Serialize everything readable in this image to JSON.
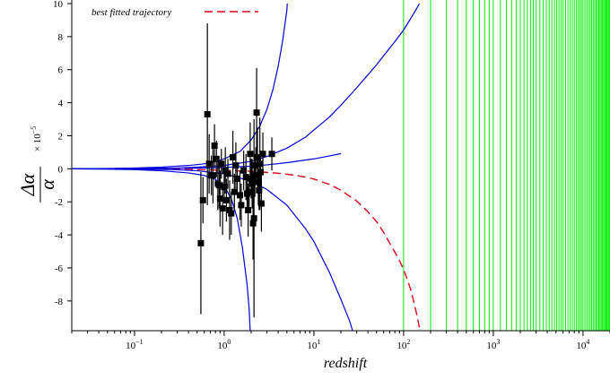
{
  "chart_data": {
    "type": "scatter",
    "title": "",
    "xlabel": "redshift",
    "ylabel": {
      "numerator": "Δα",
      "denominator": "α",
      "scale_prefix": "× 10",
      "scale_exponent": "−5"
    },
    "x_scale": "log",
    "xlim": [
      0.02,
      20000
    ],
    "ylim": [
      -9.8,
      10
    ],
    "x_ticks": [
      {
        "value": 0.1,
        "base": "10",
        "exp": "−1"
      },
      {
        "value": 1,
        "base": "10",
        "exp": "0"
      },
      {
        "value": 10,
        "base": "10",
        "exp": "1"
      },
      {
        "value": 100,
        "base": "10",
        "exp": "2"
      },
      {
        "value": 1000,
        "base": "10",
        "exp": "3"
      },
      {
        "value": 10000,
        "base": "10",
        "exp": "4"
      }
    ],
    "y_ticks": [
      {
        "value": -8,
        "label": "-8"
      },
      {
        "value": -6,
        "label": "-6"
      },
      {
        "value": -4,
        "label": "-4"
      },
      {
        "value": -2,
        "label": "-2"
      },
      {
        "value": 0,
        "label": "0"
      },
      {
        "value": 2,
        "label": "2"
      },
      {
        "value": 4,
        "label": "4"
      },
      {
        "value": 6,
        "label": "6"
      },
      {
        "value": 8,
        "label": "8"
      },
      {
        "value": 10,
        "label": "10"
      }
    ],
    "grid": false,
    "legend": {
      "placement": "top-left",
      "entries": [
        {
          "label": "best fitted trajectory",
          "color": "#e0001a",
          "style": "dashed"
        }
      ]
    },
    "vertical_line_color": "#00ee00",
    "vertical_lines_x": [
      100,
      200,
      300,
      400,
      500,
      600,
      700,
      800,
      900,
      1000,
      1200,
      1400,
      1600,
      1800,
      2000,
      2200,
      2400,
      2600,
      2800,
      3000,
      3300,
      3600,
      3900,
      4200,
      4500,
      4800,
      5100,
      5400,
      5700,
      6000,
      6400,
      6800,
      7200,
      7600,
      8000,
      8400,
      8800,
      9200,
      9600,
      10000,
      10500,
      11000,
      11500,
      12000,
      12500,
      13000,
      13500,
      14000,
      14500,
      15000,
      15500,
      16000,
      16500,
      17000,
      17500,
      18000,
      18500,
      19000,
      19500,
      20000
    ],
    "series": [
      {
        "name": "best fitted trajectory",
        "kind": "line",
        "color": "#e0001a",
        "style": "dashed",
        "points": [
          [
            0.02,
            0
          ],
          [
            0.05,
            0
          ],
          [
            0.1,
            -0.01
          ],
          [
            0.3,
            -0.03
          ],
          [
            0.6,
            -0.06
          ],
          [
            1,
            -0.09
          ],
          [
            2,
            -0.15
          ],
          [
            4,
            -0.27
          ],
          [
            6,
            -0.38
          ],
          [
            8,
            -0.5
          ],
          [
            10,
            -0.62
          ],
          [
            15,
            -0.95
          ],
          [
            20,
            -1.3
          ],
          [
            30,
            -1.95
          ],
          [
            40,
            -2.6
          ],
          [
            50,
            -3.2
          ],
          [
            60,
            -3.85
          ],
          [
            70,
            -4.5
          ],
          [
            80,
            -5.05
          ],
          [
            90,
            -5.55
          ],
          [
            100,
            -6.1
          ],
          [
            110,
            -6.7
          ],
          [
            120,
            -7.3
          ],
          [
            130,
            -8.05
          ],
          [
            140,
            -8.8
          ],
          [
            150,
            -9.6
          ]
        ]
      },
      {
        "kind": "line",
        "color": "#0000dd",
        "style": "solid",
        "points": [
          [
            0.02,
            0
          ],
          [
            0.05,
            0.02
          ],
          [
            0.1,
            0.05
          ],
          [
            0.2,
            0.1
          ],
          [
            0.4,
            0.2
          ],
          [
            0.6,
            0.3
          ],
          [
            0.8,
            0.45
          ],
          [
            1,
            0.6
          ],
          [
            1.5,
            1.05
          ],
          [
            2,
            1.75
          ],
          [
            2.5,
            2.6
          ],
          [
            3,
            3.6
          ],
          [
            3.5,
            4.8
          ],
          [
            4,
            6.2
          ],
          [
            4.5,
            7.8
          ],
          [
            5,
            9.6
          ],
          [
            5.05,
            10
          ]
        ]
      },
      {
        "kind": "line",
        "color": "#0000dd",
        "style": "solid",
        "points": [
          [
            0.02,
            0
          ],
          [
            0.05,
            -0.02
          ],
          [
            0.1,
            -0.05
          ],
          [
            0.2,
            -0.12
          ],
          [
            0.4,
            -0.25
          ],
          [
            0.6,
            -0.4
          ],
          [
            0.8,
            -0.65
          ],
          [
            1,
            -1.05
          ],
          [
            1.2,
            -1.8
          ],
          [
            1.4,
            -3.0
          ],
          [
            1.6,
            -4.8
          ],
          [
            1.8,
            -7.0
          ],
          [
            1.9,
            -8.5
          ],
          [
            1.95,
            -9.8
          ]
        ]
      },
      {
        "kind": "line",
        "color": "#0000dd",
        "style": "solid",
        "points": [
          [
            0.02,
            0
          ],
          [
            0.1,
            0.02
          ],
          [
            0.3,
            0.05
          ],
          [
            0.5,
            0.1
          ],
          [
            1,
            0.2
          ],
          [
            2,
            0.45
          ],
          [
            3,
            0.75
          ],
          [
            5,
            1.25
          ],
          [
            8,
            1.9
          ],
          [
            10,
            2.35
          ],
          [
            15,
            3.15
          ],
          [
            20,
            3.85
          ],
          [
            30,
            4.9
          ],
          [
            50,
            6.3
          ],
          [
            80,
            7.7
          ],
          [
            100,
            8.4
          ],
          [
            130,
            9.4
          ],
          [
            150,
            10
          ]
        ]
      },
      {
        "kind": "line",
        "color": "#0000dd",
        "style": "solid",
        "points": [
          [
            0.02,
            0
          ],
          [
            0.1,
            -0.02
          ],
          [
            0.3,
            -0.06
          ],
          [
            0.5,
            -0.12
          ],
          [
            1,
            -0.3
          ],
          [
            2,
            -0.75
          ],
          [
            3,
            -1.25
          ],
          [
            5,
            -2.2
          ],
          [
            8,
            -3.6
          ],
          [
            10,
            -4.4
          ],
          [
            15,
            -6.3
          ],
          [
            20,
            -7.9
          ],
          [
            25,
            -9.2
          ],
          [
            27,
            -9.8
          ]
        ]
      },
      {
        "kind": "line",
        "color": "#0000dd",
        "style": "solid",
        "points": [
          [
            0.02,
            0
          ],
          [
            0.1,
            0.01
          ],
          [
            0.5,
            0.04
          ],
          [
            1,
            0.08
          ],
          [
            2,
            0.16
          ],
          [
            3,
            0.24
          ],
          [
            5,
            0.37
          ],
          [
            10,
            0.6
          ],
          [
            15,
            0.78
          ],
          [
            20,
            0.92
          ]
        ]
      },
      {
        "name": "measurements",
        "kind": "errorbar",
        "color": "#000000",
        "points": [
          {
            "x": 0.55,
            "y": -4.5,
            "err": 4.3
          },
          {
            "x": 0.58,
            "y": -1.9,
            "err": 1.4
          },
          {
            "x": 0.65,
            "y": 3.3,
            "err": 5.5
          },
          {
            "x": 0.68,
            "y": 0.3,
            "err": 1.8
          },
          {
            "x": 0.72,
            "y": -0.4,
            "err": 1.2
          },
          {
            "x": 0.75,
            "y": -0.4,
            "err": 1.7
          },
          {
            "x": 0.78,
            "y": 1.4,
            "err": 1.3
          },
          {
            "x": 0.82,
            "y": 0.6,
            "err": 1.1
          },
          {
            "x": 0.85,
            "y": -0.9,
            "err": 1.6
          },
          {
            "x": 0.88,
            "y": -1.0,
            "err": 1.4
          },
          {
            "x": 0.9,
            "y": -1.8,
            "err": 1.7
          },
          {
            "x": 0.93,
            "y": 0.3,
            "err": 0.9
          },
          {
            "x": 0.96,
            "y": -2.4,
            "err": 1.6
          },
          {
            "x": 1.0,
            "y": -1.1,
            "err": 1.0
          },
          {
            "x": 1.03,
            "y": -0.1,
            "err": 1.4
          },
          {
            "x": 1.06,
            "y": -1.9,
            "err": 1.3
          },
          {
            "x": 1.1,
            "y": -0.3,
            "err": 0.9
          },
          {
            "x": 1.15,
            "y": -2.5,
            "err": 1.8
          },
          {
            "x": 1.2,
            "y": -2.7,
            "err": 1.3
          },
          {
            "x": 1.25,
            "y": 0.7,
            "err": 1.6
          },
          {
            "x": 1.3,
            "y": -1.4,
            "err": 1.1
          },
          {
            "x": 1.35,
            "y": 0.2,
            "err": 1.4
          },
          {
            "x": 1.4,
            "y": -0.6,
            "err": 0.8
          },
          {
            "x": 1.5,
            "y": -1.6,
            "err": 1.5
          },
          {
            "x": 1.55,
            "y": -2.2,
            "err": 1.3
          },
          {
            "x": 1.65,
            "y": -0.1,
            "err": 1.2
          },
          {
            "x": 1.75,
            "y": -0.5,
            "err": 1.4
          },
          {
            "x": 1.8,
            "y": -1.5,
            "err": 1.1
          },
          {
            "x": 1.85,
            "y": -2.5,
            "err": 1.6
          },
          {
            "x": 1.9,
            "y": -1.4,
            "err": 0.9
          },
          {
            "x": 1.95,
            "y": 0.9,
            "err": 1.9
          },
          {
            "x": 2.0,
            "y": -0.6,
            "err": 1.2
          },
          {
            "x": 2.05,
            "y": -0.9,
            "err": 1.5
          },
          {
            "x": 2.1,
            "y": -3.3,
            "err": 2.2
          },
          {
            "x": 2.15,
            "y": -3.0,
            "err": 6.0
          },
          {
            "x": 2.2,
            "y": -0.4,
            "err": 1.3
          },
          {
            "x": 2.25,
            "y": 0.2,
            "err": 1.1
          },
          {
            "x": 2.3,
            "y": 3.4,
            "err": 2.7
          },
          {
            "x": 2.35,
            "y": 0.7,
            "err": 1.8
          },
          {
            "x": 2.4,
            "y": -0.8,
            "err": 1.4
          },
          {
            "x": 2.45,
            "y": -1.3,
            "err": 1.2
          },
          {
            "x": 2.5,
            "y": 0.3,
            "err": 2.8
          },
          {
            "x": 2.55,
            "y": -0.2,
            "err": 1.3
          },
          {
            "x": 2.6,
            "y": -2.1,
            "err": 1.7
          },
          {
            "x": 2.7,
            "y": 0.9,
            "err": 1.3
          },
          {
            "x": 3.4,
            "y": 0.9,
            "err": 1.0
          }
        ]
      }
    ]
  }
}
